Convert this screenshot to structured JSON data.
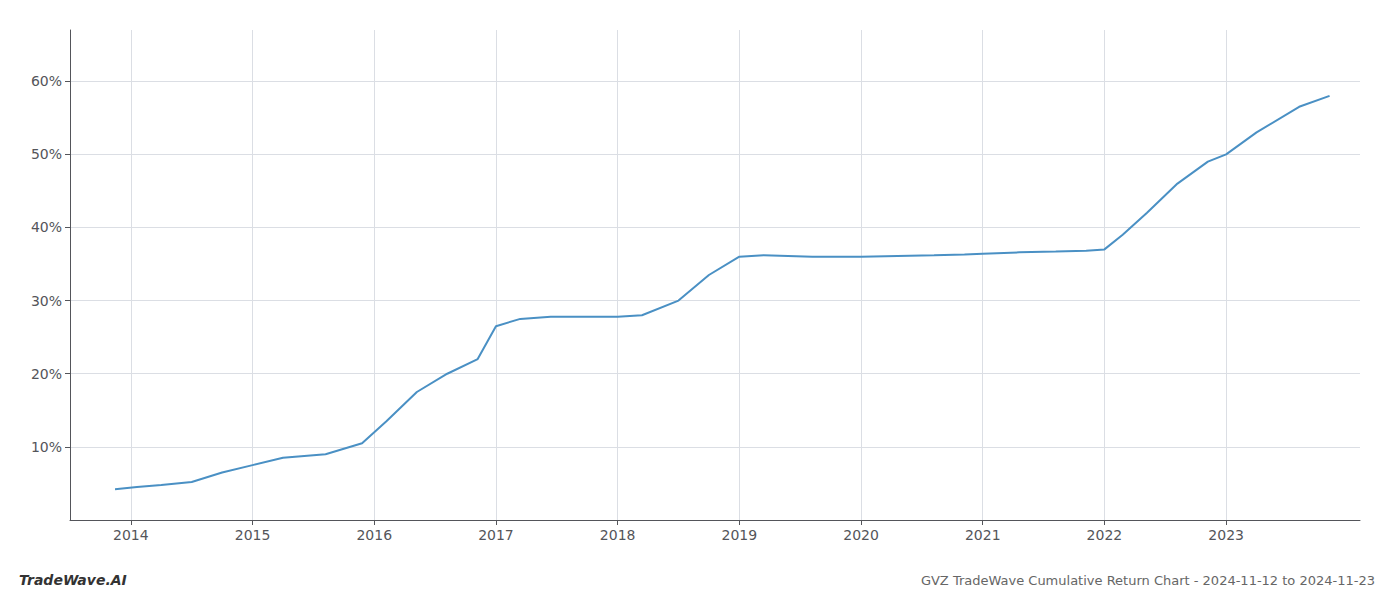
{
  "chart_data": {
    "type": "line",
    "title": "GVZ TradeWave Cumulative Return Chart - 2024-11-12 to 2024-11-23",
    "annotations": [
      "TradeWave.AI"
    ],
    "x": [
      2013.87,
      2014.05,
      2014.25,
      2014.5,
      2014.75,
      2015.0,
      2015.25,
      2015.6,
      2015.9,
      2016.1,
      2016.35,
      2016.6,
      2016.85,
      2017.0,
      2017.2,
      2017.45,
      2017.65,
      2017.85,
      2018.0,
      2018.2,
      2018.5,
      2018.75,
      2019.0,
      2019.2,
      2019.4,
      2019.6,
      2019.85,
      2020.0,
      2020.3,
      2020.6,
      2020.85,
      2021.0,
      2021.3,
      2021.6,
      2021.85,
      2022.0,
      2022.15,
      2022.35,
      2022.6,
      2022.85,
      2023.0,
      2023.25,
      2023.6,
      2023.85
    ],
    "values": [
      4.2,
      4.5,
      4.8,
      5.2,
      6.5,
      7.5,
      8.5,
      9.0,
      10.5,
      13.5,
      17.5,
      20.0,
      22.0,
      26.5,
      27.5,
      27.8,
      27.8,
      27.8,
      27.8,
      28.0,
      30.0,
      33.5,
      36.0,
      36.2,
      36.1,
      36.0,
      36.0,
      36.0,
      36.1,
      36.2,
      36.3,
      36.4,
      36.6,
      36.7,
      36.8,
      37.0,
      39.0,
      42.0,
      46.0,
      49.0,
      50.0,
      53.0,
      56.5,
      58.0
    ],
    "color": "#4a90c4",
    "xlim": [
      2013.5,
      2024.1
    ],
    "ylim": [
      0,
      67
    ],
    "xticks": [
      2014,
      2015,
      2016,
      2017,
      2018,
      2019,
      2020,
      2021,
      2022,
      2023
    ],
    "yticks": [
      {
        "value": 10,
        "label": "10%"
      },
      {
        "value": 20,
        "label": "20%"
      },
      {
        "value": 30,
        "label": "30%"
      },
      {
        "value": 40,
        "label": "40%"
      },
      {
        "value": 50,
        "label": "50%"
      },
      {
        "value": 60,
        "label": "60%"
      }
    ],
    "grid": true
  }
}
